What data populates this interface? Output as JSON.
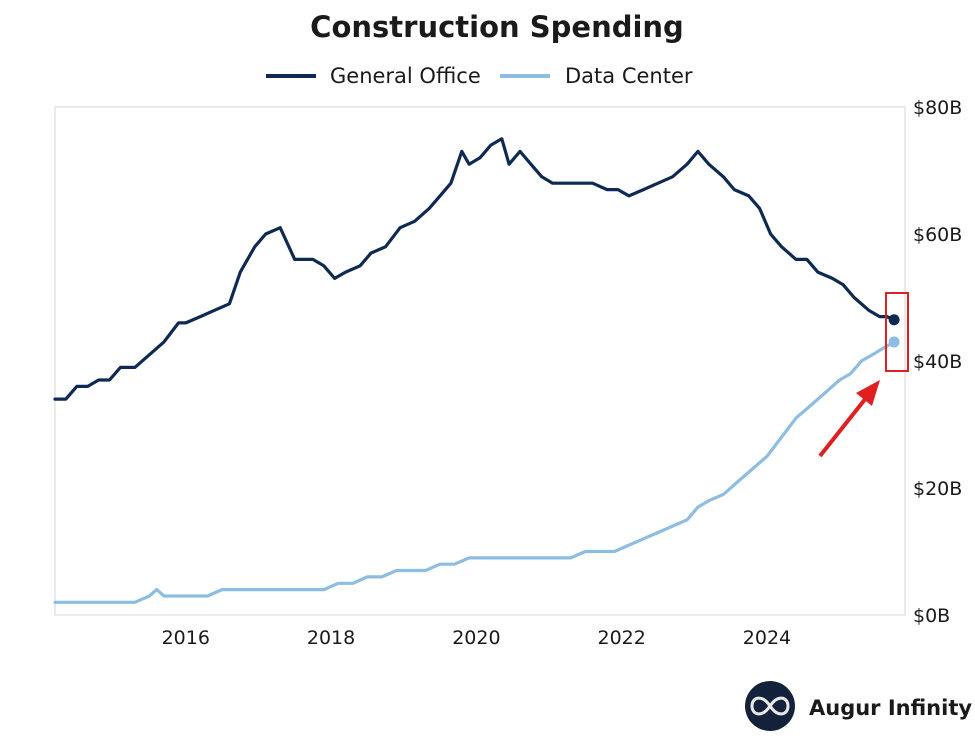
{
  "chart_data": {
    "type": "line",
    "title": "Construction Spending",
    "xlabel": "",
    "ylabel": "",
    "x_ticks": [
      "2016",
      "2018",
      "2020",
      "2022",
      "2024"
    ],
    "y_ticks": [
      "$0B",
      "$20B",
      "$40B",
      "$60B",
      "$80B"
    ],
    "xlim": [
      2014.2,
      2025.9
    ],
    "ylim": [
      0,
      80
    ],
    "legend": "top-center",
    "grid": false,
    "highlight": {
      "type": "box-and-arrow",
      "x": 2025.75,
      "color": "#e02020"
    },
    "series": [
      {
        "name": "General Office",
        "color": "#0f2a52",
        "points": [
          [
            2014.2,
            34
          ],
          [
            2014.35,
            34
          ],
          [
            2014.5,
            36
          ],
          [
            2014.65,
            36
          ],
          [
            2014.8,
            37
          ],
          [
            2014.95,
            37
          ],
          [
            2015.1,
            39
          ],
          [
            2015.3,
            39
          ],
          [
            2015.5,
            41
          ],
          [
            2015.7,
            43
          ],
          [
            2015.9,
            46
          ],
          [
            2016.0,
            46
          ],
          [
            2016.2,
            47
          ],
          [
            2016.4,
            48
          ],
          [
            2016.6,
            49
          ],
          [
            2016.75,
            54
          ],
          [
            2016.95,
            58
          ],
          [
            2017.1,
            60
          ],
          [
            2017.3,
            61
          ],
          [
            2017.5,
            56
          ],
          [
            2017.75,
            56
          ],
          [
            2017.9,
            55
          ],
          [
            2018.05,
            53
          ],
          [
            2018.2,
            54
          ],
          [
            2018.4,
            55
          ],
          [
            2018.55,
            57
          ],
          [
            2018.75,
            58
          ],
          [
            2018.95,
            61
          ],
          [
            2019.15,
            62
          ],
          [
            2019.35,
            64
          ],
          [
            2019.5,
            66
          ],
          [
            2019.65,
            68
          ],
          [
            2019.8,
            73
          ],
          [
            2019.9,
            71
          ],
          [
            2020.05,
            72
          ],
          [
            2020.2,
            74
          ],
          [
            2020.35,
            75
          ],
          [
            2020.45,
            71
          ],
          [
            2020.6,
            73
          ],
          [
            2020.75,
            71
          ],
          [
            2020.9,
            69
          ],
          [
            2021.05,
            68
          ],
          [
            2021.2,
            68
          ],
          [
            2021.4,
            68
          ],
          [
            2021.6,
            68
          ],
          [
            2021.8,
            67
          ],
          [
            2021.95,
            67
          ],
          [
            2022.1,
            66
          ],
          [
            2022.3,
            67
          ],
          [
            2022.5,
            68
          ],
          [
            2022.7,
            69
          ],
          [
            2022.9,
            71
          ],
          [
            2023.05,
            73
          ],
          [
            2023.2,
            71
          ],
          [
            2023.4,
            69
          ],
          [
            2023.55,
            67
          ],
          [
            2023.75,
            66
          ],
          [
            2023.9,
            64
          ],
          [
            2024.05,
            60
          ],
          [
            2024.2,
            58
          ],
          [
            2024.4,
            56
          ],
          [
            2024.55,
            56
          ],
          [
            2024.7,
            54
          ],
          [
            2024.9,
            53
          ],
          [
            2025.05,
            52
          ],
          [
            2025.2,
            50
          ],
          [
            2025.4,
            48
          ],
          [
            2025.55,
            47
          ],
          [
            2025.65,
            47
          ],
          [
            2025.75,
            46.5
          ]
        ]
      },
      {
        "name": "Data Center",
        "color": "#8ebde3",
        "points": [
          [
            2014.2,
            2
          ],
          [
            2014.5,
            2
          ],
          [
            2014.8,
            2
          ],
          [
            2015.1,
            2
          ],
          [
            2015.3,
            2
          ],
          [
            2015.5,
            3
          ],
          [
            2015.6,
            4
          ],
          [
            2015.7,
            3
          ],
          [
            2015.9,
            3
          ],
          [
            2016.1,
            3
          ],
          [
            2016.3,
            3
          ],
          [
            2016.5,
            4
          ],
          [
            2016.7,
            4
          ],
          [
            2016.9,
            4
          ],
          [
            2017.1,
            4
          ],
          [
            2017.3,
            4
          ],
          [
            2017.5,
            4
          ],
          [
            2017.7,
            4
          ],
          [
            2017.9,
            4
          ],
          [
            2018.1,
            5
          ],
          [
            2018.3,
            5
          ],
          [
            2018.5,
            6
          ],
          [
            2018.7,
            6
          ],
          [
            2018.9,
            7
          ],
          [
            2019.1,
            7
          ],
          [
            2019.3,
            7
          ],
          [
            2019.5,
            8
          ],
          [
            2019.7,
            8
          ],
          [
            2019.9,
            9
          ],
          [
            2020.1,
            9
          ],
          [
            2020.3,
            9
          ],
          [
            2020.5,
            9
          ],
          [
            2020.7,
            9
          ],
          [
            2020.9,
            9
          ],
          [
            2021.1,
            9
          ],
          [
            2021.3,
            9
          ],
          [
            2021.5,
            10
          ],
          [
            2021.7,
            10
          ],
          [
            2021.9,
            10
          ],
          [
            2022.1,
            11
          ],
          [
            2022.3,
            12
          ],
          [
            2022.5,
            13
          ],
          [
            2022.7,
            14
          ],
          [
            2022.9,
            15
          ],
          [
            2023.05,
            17
          ],
          [
            2023.2,
            18
          ],
          [
            2023.4,
            19
          ],
          [
            2023.6,
            21
          ],
          [
            2023.8,
            23
          ],
          [
            2024.0,
            25
          ],
          [
            2024.2,
            28
          ],
          [
            2024.4,
            31
          ],
          [
            2024.6,
            33
          ],
          [
            2024.8,
            35
          ],
          [
            2025.0,
            37
          ],
          [
            2025.15,
            38
          ],
          [
            2025.3,
            40
          ],
          [
            2025.45,
            41
          ],
          [
            2025.6,
            42
          ],
          [
            2025.75,
            43
          ]
        ]
      }
    ]
  },
  "brand": {
    "name": "Augur Infinity",
    "logo_icon": "infinity-icon"
  }
}
